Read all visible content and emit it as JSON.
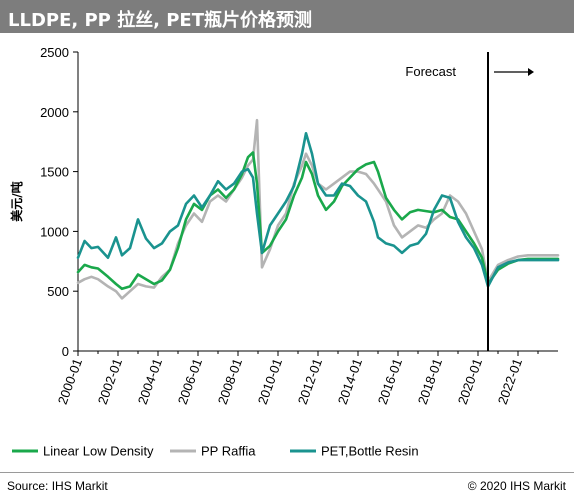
{
  "header": {
    "title": "LLDPE, PP 拉丝, PET瓶片价格预测"
  },
  "footer": {
    "source": "Source: IHS Markit",
    "copyright": "© 2020 IHS Markit"
  },
  "colors": {
    "lldpe": "#1aa84b",
    "pp": "#b4b4b4",
    "pet": "#1a938f",
    "header_bg": "#7d7d7d"
  },
  "chart_data": {
    "type": "line",
    "ylabel": "美元/吨",
    "ylim": [
      0,
      2500
    ],
    "yticks": [
      0,
      500,
      1000,
      1500,
      2000,
      2500
    ],
    "xlim": [
      2000.0,
      2024.0
    ],
    "xticks": [
      {
        "v": 2000,
        "label": "2000-01"
      },
      {
        "v": 2002,
        "label": "2002-01"
      },
      {
        "v": 2004,
        "label": "2004-01"
      },
      {
        "v": 2006,
        "label": "2006-01"
      },
      {
        "v": 2008,
        "label": "2008-01"
      },
      {
        "v": 2010,
        "label": "2010-01"
      },
      {
        "v": 2012,
        "label": "2012-01"
      },
      {
        "v": 2014,
        "label": "2014-01"
      },
      {
        "v": 2016,
        "label": "2016-01"
      },
      {
        "v": 2018,
        "label": "2018-01"
      },
      {
        "v": 2020,
        "label": "2020-01"
      },
      {
        "v": 2022,
        "label": "2022-01"
      }
    ],
    "grid": false,
    "legend": "bottom",
    "annotation": {
      "text": "Forecast",
      "x": 2020.5
    },
    "series": [
      {
        "name": "Linear Low Density",
        "color": "#1aa84b",
        "x": [
          2000,
          2000.33,
          2000.67,
          2001,
          2001.5,
          2001.9,
          2002.2,
          2002.6,
          2003,
          2003.4,
          2003.8,
          2004.2,
          2004.6,
          2005,
          2005.4,
          2005.8,
          2006.2,
          2006.6,
          2007,
          2007.4,
          2007.8,
          2008.2,
          2008.5,
          2008.75,
          2008.95,
          2009.2,
          2009.6,
          2010,
          2010.4,
          2010.8,
          2011.2,
          2011.4,
          2011.7,
          2012,
          2012.4,
          2012.8,
          2013.2,
          2013.6,
          2014,
          2014.4,
          2014.8,
          2015,
          2015.4,
          2015.8,
          2016.2,
          2016.6,
          2017,
          2017.4,
          2017.8,
          2018.2,
          2018.6,
          2019,
          2019.4,
          2019.8,
          2020.2,
          2020.5,
          2021,
          2021.5,
          2022,
          2022.5,
          2023,
          2023.5,
          2024
        ],
        "y": [
          660,
          720,
          700,
          690,
          620,
          560,
          520,
          540,
          640,
          600,
          560,
          590,
          680,
          860,
          1100,
          1230,
          1180,
          1300,
          1350,
          1280,
          1350,
          1480,
          1620,
          1660,
          1400,
          820,
          880,
          1000,
          1100,
          1300,
          1450,
          1580,
          1480,
          1300,
          1180,
          1250,
          1380,
          1450,
          1520,
          1560,
          1580,
          1500,
          1280,
          1180,
          1100,
          1160,
          1180,
          1170,
          1160,
          1180,
          1120,
          1100,
          1000,
          900,
          780,
          560,
          680,
          730,
          760,
          770,
          770,
          770,
          770
        ]
      },
      {
        "name": "PP Raffia",
        "color": "#b4b4b4",
        "x": [
          2000,
          2000.33,
          2000.67,
          2001,
          2001.5,
          2001.9,
          2002.2,
          2002.6,
          2003,
          2003.4,
          2003.8,
          2004.2,
          2004.6,
          2005,
          2005.4,
          2005.8,
          2006.2,
          2006.6,
          2007,
          2007.4,
          2007.8,
          2008.2,
          2008.5,
          2008.75,
          2008.95,
          2009.2,
          2009.6,
          2010,
          2010.4,
          2010.8,
          2011.2,
          2011.4,
          2011.7,
          2012,
          2012.4,
          2012.8,
          2013.2,
          2013.6,
          2014,
          2014.4,
          2014.8,
          2015,
          2015.4,
          2015.8,
          2016.2,
          2016.6,
          2017,
          2017.4,
          2017.8,
          2018.2,
          2018.6,
          2019,
          2019.4,
          2019.8,
          2020.2,
          2020.5,
          2021,
          2021.5,
          2022,
          2022.5,
          2023,
          2023.5,
          2024
        ],
        "y": [
          570,
          600,
          620,
          600,
          540,
          500,
          440,
          500,
          560,
          540,
          530,
          620,
          680,
          900,
          1050,
          1150,
          1080,
          1250,
          1300,
          1250,
          1350,
          1450,
          1550,
          1600,
          1930,
          700,
          850,
          1050,
          1150,
          1400,
          1550,
          1650,
          1550,
          1400,
          1350,
          1400,
          1450,
          1500,
          1500,
          1480,
          1400,
          1350,
          1250,
          1050,
          950,
          1000,
          1050,
          1030,
          1100,
          1150,
          1300,
          1250,
          1150,
          1000,
          850,
          580,
          720,
          760,
          790,
          800,
          800,
          800,
          800
        ]
      },
      {
        "name": "PET,Bottle Resin",
        "color": "#1a938f",
        "x": [
          2000,
          2000.33,
          2000.67,
          2001,
          2001.5,
          2001.9,
          2002.2,
          2002.6,
          2003,
          2003.4,
          2003.8,
          2004.2,
          2004.6,
          2005,
          2005.4,
          2005.8,
          2006.2,
          2006.6,
          2007,
          2007.4,
          2007.8,
          2008.2,
          2008.5,
          2008.75,
          2008.95,
          2009.2,
          2009.6,
          2010,
          2010.4,
          2010.8,
          2011.2,
          2011.4,
          2011.7,
          2012,
          2012.4,
          2012.8,
          2013.2,
          2013.6,
          2014,
          2014.4,
          2014.8,
          2015,
          2015.4,
          2015.8,
          2016.2,
          2016.6,
          2017,
          2017.4,
          2017.8,
          2018.2,
          2018.6,
          2019,
          2019.4,
          2019.8,
          2020.2,
          2020.5,
          2021,
          2021.5,
          2022,
          2022.5,
          2023,
          2023.5,
          2024
        ],
        "y": [
          780,
          920,
          860,
          870,
          780,
          950,
          800,
          860,
          1100,
          940,
          860,
          900,
          1000,
          1050,
          1230,
          1300,
          1200,
          1300,
          1420,
          1350,
          1400,
          1500,
          1520,
          1450,
          1150,
          820,
          1050,
          1150,
          1250,
          1380,
          1650,
          1820,
          1650,
          1400,
          1300,
          1300,
          1400,
          1380,
          1300,
          1250,
          1080,
          950,
          900,
          880,
          820,
          880,
          900,
          980,
          1180,
          1300,
          1280,
          1080,
          950,
          860,
          720,
          540,
          700,
          740,
          760,
          760,
          760,
          760,
          760
        ]
      }
    ]
  }
}
